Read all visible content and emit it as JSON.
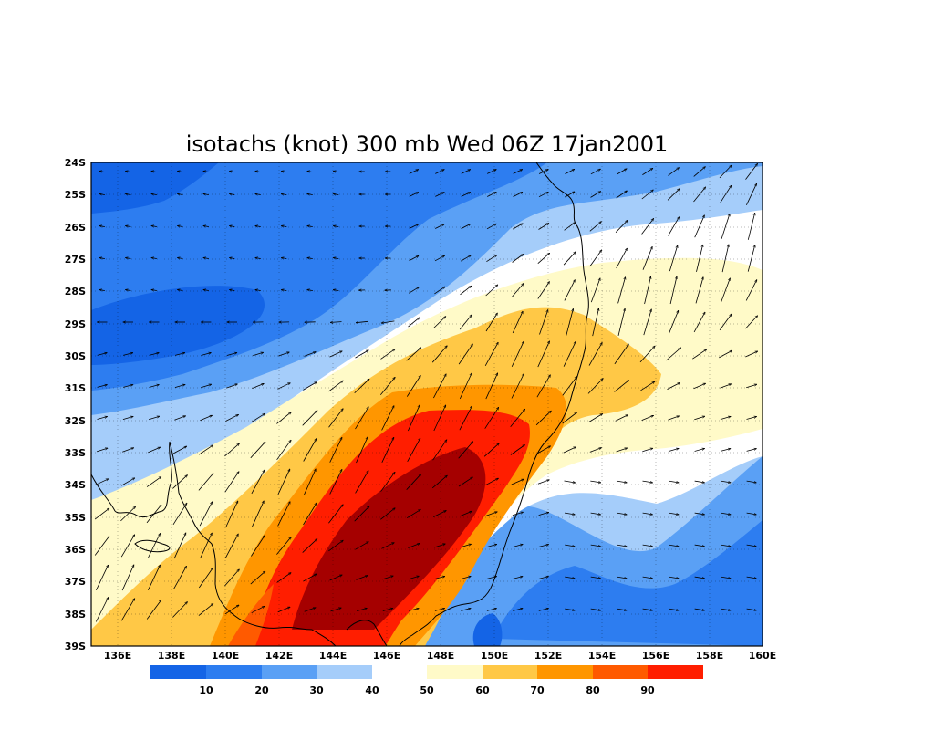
{
  "title": "isotachs (knot) 300 mb Wed 06Z 17jan2001",
  "map": {
    "lon_range": [
      135,
      160
    ],
    "lat_range": [
      -39,
      -24
    ],
    "x_ticks": [
      "136E",
      "138E",
      "140E",
      "142E",
      "144E",
      "146E",
      "148E",
      "150E",
      "152E",
      "154E",
      "156E",
      "158E",
      "160E"
    ],
    "y_ticks": [
      "24S",
      "25S",
      "26S",
      "27S",
      "28S",
      "29S",
      "30S",
      "31S",
      "32S",
      "33S",
      "34S",
      "35S",
      "36S",
      "37S",
      "38S",
      "39S"
    ],
    "grid": "dotted",
    "field": "wind speed isotachs (shaded) with wind vectors",
    "coastline": "south-east Australia"
  },
  "colorbar": {
    "labels": [
      "10",
      "20",
      "30",
      "40",
      "50",
      "60",
      "70",
      "80",
      "90"
    ],
    "colors": [
      "#1464e6",
      "#2d7df0",
      "#5aa0f5",
      "#a5cdfa",
      "#ffffff",
      "#fffac8",
      "#ffc846",
      "#ff9600",
      "#ff5a00",
      "#ff1e00",
      "#a50000"
    ]
  }
}
